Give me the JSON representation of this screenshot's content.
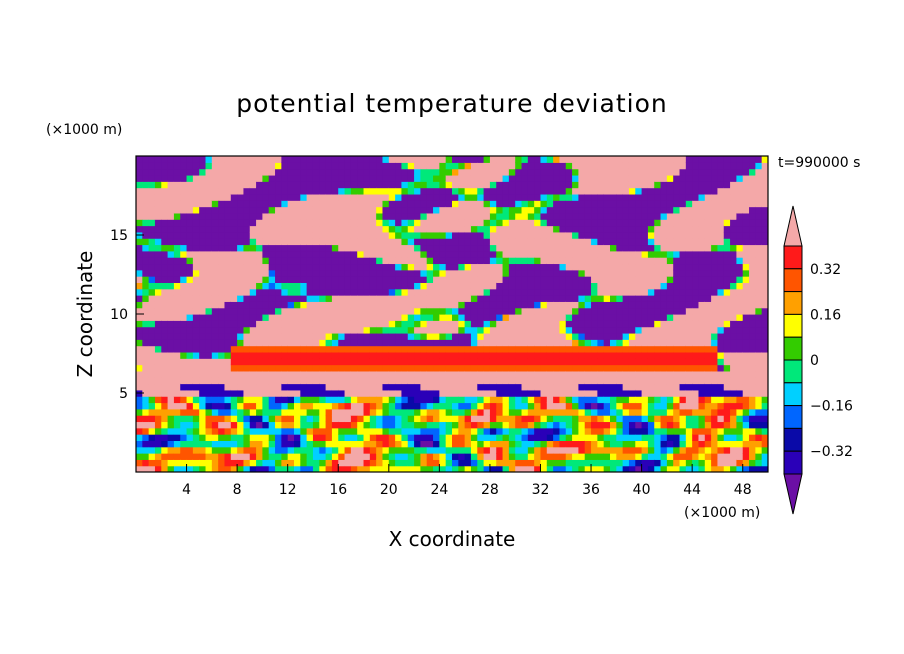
{
  "chart_data": {
    "type": "heatmap",
    "title": "potential temperature deviation",
    "xlabel": "X coordinate",
    "ylabel": "Z coordinate",
    "x_unit": "(×1000 m)",
    "y_unit": "(×1000 m)",
    "time_label": "t=990000 s",
    "xlim": [
      0,
      50
    ],
    "ylim": [
      0,
      20
    ],
    "x_ticks": [
      4,
      8,
      12,
      16,
      20,
      24,
      28,
      32,
      36,
      40,
      44,
      48
    ],
    "y_ticks": [
      5,
      10,
      15
    ],
    "colorbar": {
      "levels": [
        -0.4,
        -0.32,
        -0.24,
        -0.16,
        -0.08,
        0,
        0.08,
        0.16,
        0.24,
        0.32,
        0.4
      ],
      "tick_labels": [
        "0.32",
        "0.16",
        "0",
        "−0.16",
        "−0.32"
      ],
      "tick_values": [
        0.32,
        0.16,
        0,
        -0.16,
        -0.32
      ],
      "colors": [
        "#6b0fa5",
        "#2a00b8",
        "#0a0aa8",
        "#0066ff",
        "#00d0ff",
        "#00e87a",
        "#33cc00",
        "#ffff00",
        "#ffa000",
        "#ff5500",
        "#ff1a1a",
        "#f4a8a8"
      ]
    },
    "field_description_regions": {
      "lower_turbulent_layer_z": [
        0,
        5
      ],
      "warm_band_z": [
        6.3,
        8
      ],
      "upper_mixed_layer_z": [
        8,
        20
      ]
    }
  }
}
